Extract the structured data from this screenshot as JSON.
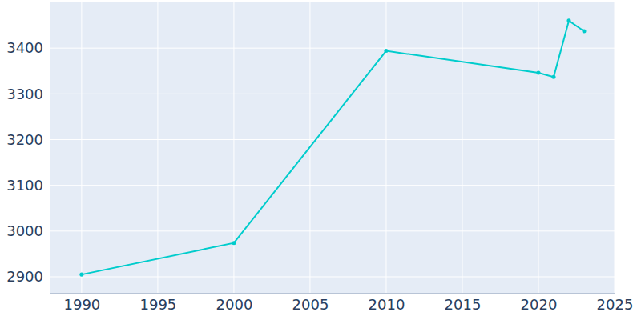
{
  "chart_data": {
    "type": "line",
    "x": [
      1990,
      2000,
      2010,
      2020,
      2021,
      2022,
      2023
    ],
    "values": [
      2905,
      2974,
      3394,
      3346,
      3337,
      3460,
      3437
    ],
    "color": "#00cccc",
    "marker": "circle",
    "xlim": [
      1987.9,
      2025
    ],
    "xticks": [
      1990,
      1995,
      2000,
      2005,
      2010,
      2015,
      2020,
      2025
    ],
    "ylim": [
      2865,
      3500
    ],
    "yticks": [
      2900,
      3000,
      3100,
      3200,
      3300,
      3400
    ],
    "grid": true
  }
}
